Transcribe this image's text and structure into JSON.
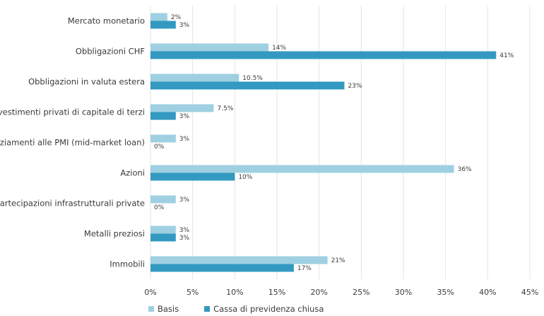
{
  "chart_data": {
    "type": "bar",
    "orientation": "horizontal",
    "categories": [
      "Mercato monetario",
      "Obbligazioni CHF",
      "Obbligazioni in valuta estera",
      "Investimenti privati di capitale di terzi",
      "Finanziamenti alle PMI (mid-market loan)",
      "Azioni",
      "Partecipazioni infrastrutturali private",
      "Metalli preziosi",
      "Immobili"
    ],
    "series": [
      {
        "name": "Basis",
        "color": "#9fd0e1",
        "values": [
          2,
          14,
          10.5,
          7.5,
          3,
          36,
          3,
          3,
          21
        ],
        "labels": [
          "2%",
          "14%",
          "10.5%",
          "7.5%",
          "3%",
          "36%",
          "3%",
          "3%",
          "21%"
        ]
      },
      {
        "name": "Cassa di previdenza chiusa",
        "color": "#3399c1",
        "values": [
          3,
          41,
          23,
          3,
          0,
          10,
          0,
          3,
          17
        ],
        "labels": [
          "3%",
          "41%",
          "23%",
          "3%",
          "0%",
          "10%",
          "0%",
          "3%",
          "17%"
        ]
      }
    ],
    "xlim": [
      0,
      45
    ],
    "xticks": [
      "0%",
      "5%",
      "10%",
      "15%",
      "20%",
      "25%",
      "30%",
      "35%",
      "40%",
      "45%"
    ],
    "grid": "vertical",
    "legend": "bottom-left",
    "title": "",
    "xlabel": "",
    "ylabel": ""
  }
}
